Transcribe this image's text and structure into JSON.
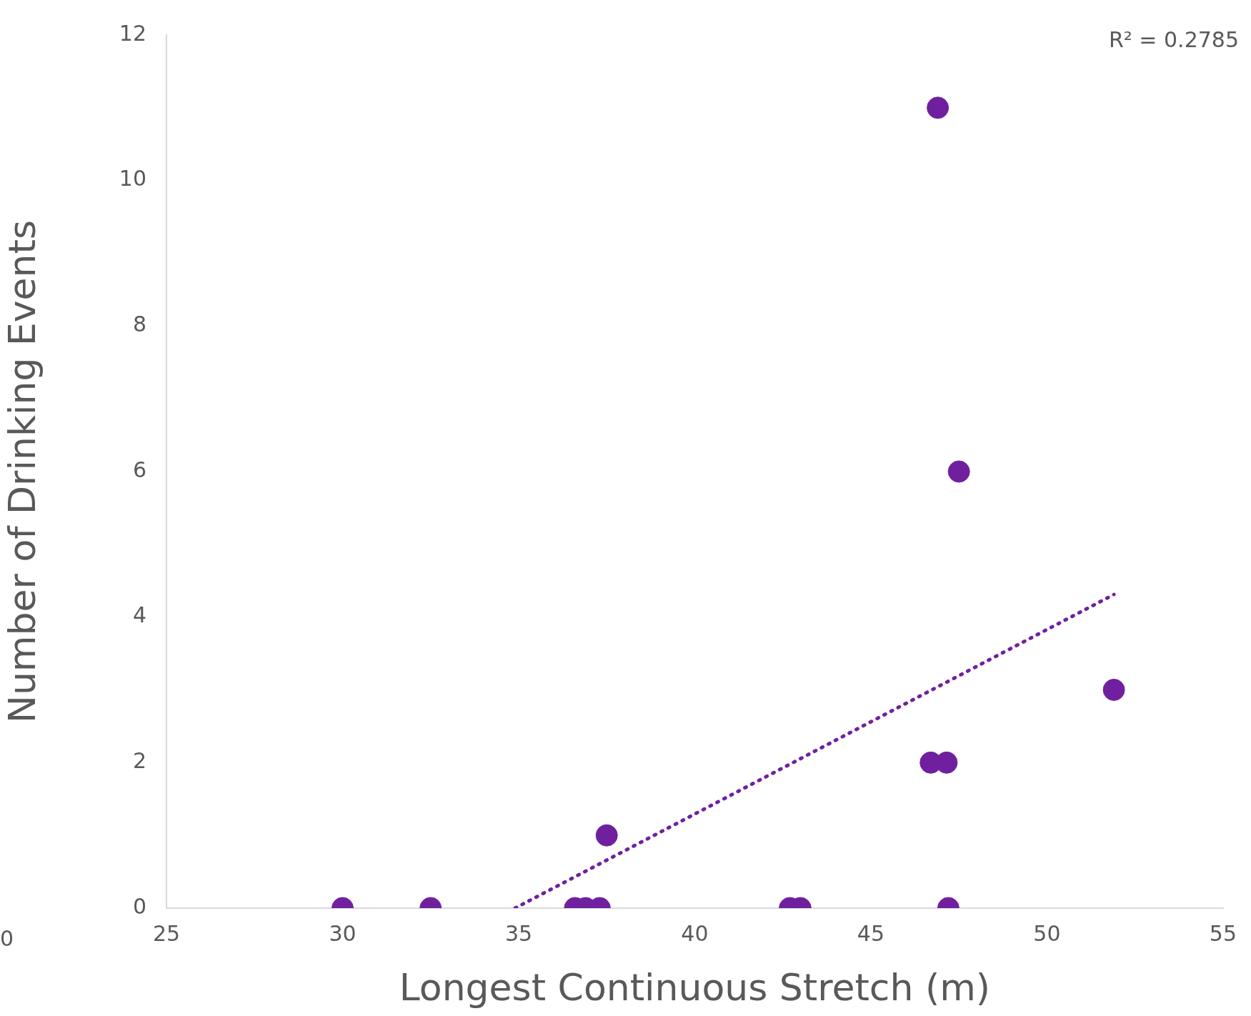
{
  "chart_data": {
    "type": "scatter",
    "xlabel": "Longest Continuous Stretch (m)",
    "ylabel": "Number of Drinking Events",
    "xlim": [
      25,
      55
    ],
    "xticks": [
      25,
      30,
      35,
      40,
      45,
      50,
      55
    ],
    "ylim": [
      0,
      12
    ],
    "yticks": [
      0,
      2,
      4,
      6,
      8,
      10,
      12
    ],
    "grid": false,
    "legend": false,
    "marker": "circle",
    "annotations": [
      "R² = 0.2785",
      "0"
    ],
    "series": [
      {
        "type": "scatter",
        "color": "#70209f",
        "x": [
          30,
          32.5,
          36.6,
          36.9,
          37.3,
          37.5,
          42.7,
          43,
          46.7,
          47.15,
          46.9,
          47.2,
          47.5,
          51.9
        ],
        "values": [
          0,
          0,
          0,
          0,
          0,
          1,
          0,
          0,
          2,
          2,
          11,
          0,
          6,
          3
        ]
      },
      {
        "type": "line",
        "color": "#70209f",
        "line_style": "dotted",
        "marker": "none",
        "x": [
          34.9,
          51.9
        ],
        "values": [
          0,
          4.31
        ]
      }
    ]
  }
}
